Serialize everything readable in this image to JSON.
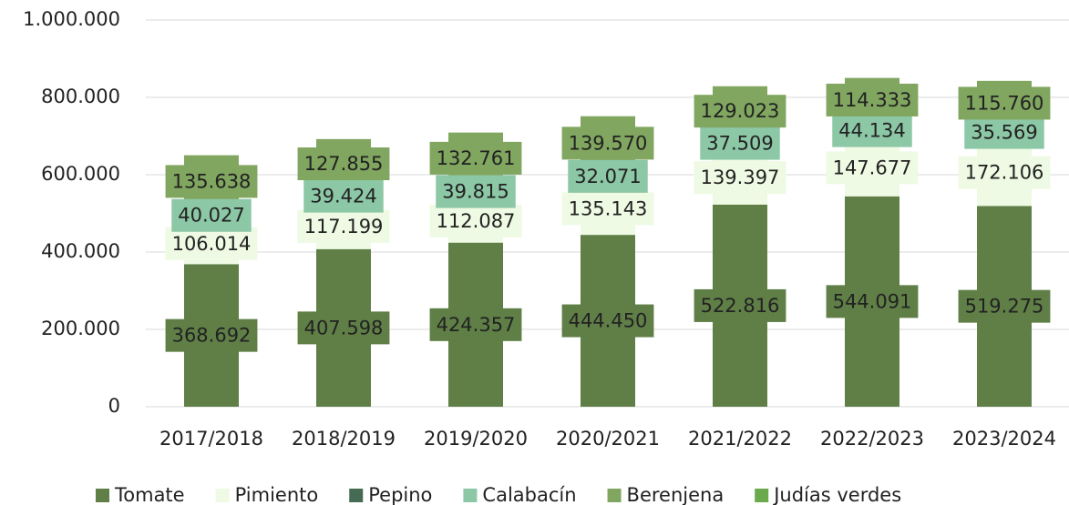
{
  "chart_data": {
    "type": "stacked_bar",
    "categories": [
      "2017/2018",
      "2018/2019",
      "2019/2020",
      "2020/2021",
      "2021/2022",
      "2022/2023",
      "2023/2024"
    ],
    "series": [
      {
        "name": "Tomate",
        "color": "#5f7f47",
        "values": [
          368692,
          407598,
          424357,
          444450,
          522816,
          544091,
          519275
        ],
        "value_labels": [
          "368.692",
          "407.598",
          "424.357",
          "444.450",
          "522.816",
          "544.091",
          "519.275"
        ]
      },
      {
        "name": "Pimiento",
        "color": "#eefae3",
        "values": [
          106014,
          117199,
          112087,
          135143,
          139397,
          147677,
          172106
        ],
        "value_labels": [
          "106.014",
          "117.199",
          "112.087",
          "135.143",
          "139.397",
          "147.677",
          "172.106"
        ]
      },
      {
        "name": "Pepino",
        "color": "#466b55",
        "values": [
          null,
          null,
          null,
          null,
          null,
          null,
          null
        ]
      },
      {
        "name": "Calabacín",
        "color": "#8cc7a6",
        "values": [
          40027,
          39424,
          39815,
          32071,
          37509,
          44134,
          35569
        ],
        "value_labels": [
          "40.027",
          "39.424",
          "39.815",
          "32.071",
          "37.509",
          "44.134",
          "35.569"
        ]
      },
      {
        "name": "Berenjena",
        "color": "#80a660",
        "values": [
          135638,
          127855,
          132761,
          139570,
          129023,
          114333,
          115760
        ],
        "value_labels": [
          "135.638",
          "127.855",
          "132.761",
          "139.570",
          "129.023",
          "114.333",
          "115.760"
        ]
      },
      {
        "name": "Judías verdes",
        "color": "#6aaa4c",
        "values": [
          null,
          null,
          null,
          null,
          null,
          null,
          null
        ]
      }
    ],
    "ylim": [
      0,
      1000000
    ],
    "yticks": [
      0,
      {
        "value": 200000,
        "label": "200.000"
      },
      {
        "value": 400000,
        "label": "400.000"
      },
      {
        "value": 600000,
        "label": "600.000"
      },
      {
        "value": 800000,
        "label": "800.000"
      },
      {
        "value": 1000000,
        "label": "1.000.000"
      }
    ],
    "grid": true,
    "legend": "bottom"
  }
}
